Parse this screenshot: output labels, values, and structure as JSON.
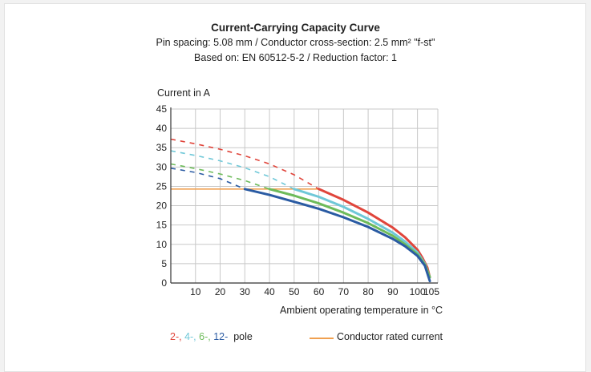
{
  "title": "Current-Carrying Capacity Curve",
  "subtitle_1": "Pin spacing: 5.08 mm / Conductor cross-section: 2.5 mm² \"f-st\"",
  "subtitle_2": "Based on: EN 60512-5-2 / Reduction factor: 1",
  "legend": {
    "poles": [
      {
        "text": "2-, ",
        "color": "#e0453b"
      },
      {
        "text": "4-, ",
        "color": "#6fc8d8"
      },
      {
        "text": "6-, ",
        "color": "#6dbb5a"
      },
      {
        "text": "12-",
        "color": "#2a5ba3"
      }
    ],
    "pole_suffix": "  pole",
    "rated_label": "Conductor rated current"
  },
  "chart_data": {
    "type": "line",
    "ylabel": "Current in A",
    "xlabel": "Ambient operating temperature in °C",
    "xlim": [
      0,
      105
    ],
    "ylim": [
      0,
      45
    ],
    "x_ticks": [
      10,
      20,
      30,
      40,
      50,
      60,
      70,
      80,
      90,
      100,
      105
    ],
    "y_ticks": [
      45,
      40,
      35,
      30,
      25,
      20,
      15,
      10,
      5,
      0
    ],
    "grid": true,
    "series": [
      {
        "name": "2-",
        "color": "#e0453b",
        "dashed": [
          [
            0,
            37.2
          ],
          [
            10,
            36.0
          ],
          [
            20,
            34.6
          ],
          [
            30,
            32.9
          ],
          [
            40,
            30.8
          ],
          [
            50,
            28.0
          ],
          [
            60,
            24.3
          ]
        ],
        "solid": [
          [
            60,
            24.3
          ],
          [
            70,
            21.5
          ],
          [
            80,
            18.2
          ],
          [
            90,
            14.3
          ],
          [
            95,
            11.8
          ],
          [
            100,
            8.6
          ],
          [
            102,
            6.5
          ],
          [
            104,
            4.0
          ],
          [
            105,
            1.5
          ]
        ]
      },
      {
        "name": "4-",
        "color": "#6fc8d8",
        "dashed": [
          [
            0,
            34.2
          ],
          [
            10,
            33.0
          ],
          [
            20,
            31.6
          ],
          [
            30,
            29.8
          ],
          [
            40,
            27.5
          ],
          [
            50,
            24.3
          ]
        ],
        "solid": [
          [
            50,
            24.3
          ],
          [
            60,
            22.3
          ],
          [
            70,
            19.7
          ],
          [
            80,
            16.6
          ],
          [
            90,
            13.0
          ],
          [
            95,
            10.7
          ],
          [
            100,
            7.9
          ],
          [
            103,
            5.0
          ],
          [
            105,
            1.5
          ]
        ]
      },
      {
        "name": "6-",
        "color": "#6dbb5a",
        "dashed": [
          [
            0,
            30.8
          ],
          [
            10,
            29.6
          ],
          [
            20,
            28.2
          ],
          [
            30,
            26.5
          ],
          [
            40,
            24.3
          ]
        ],
        "solid": [
          [
            40,
            24.3
          ],
          [
            50,
            22.6
          ],
          [
            60,
            20.6
          ],
          [
            70,
            18.2
          ],
          [
            80,
            15.5
          ],
          [
            90,
            12.2
          ],
          [
            95,
            10.0
          ],
          [
            100,
            7.4
          ],
          [
            103,
            4.8
          ],
          [
            105,
            1.5
          ]
        ]
      },
      {
        "name": "12-",
        "color": "#2a5ba3",
        "dashed": [
          [
            0,
            29.7
          ],
          [
            10,
            28.6
          ],
          [
            20,
            27.0
          ],
          [
            30,
            24.3
          ]
        ],
        "solid": [
          [
            30,
            24.3
          ],
          [
            40,
            22.8
          ],
          [
            50,
            21.0
          ],
          [
            60,
            19.2
          ],
          [
            70,
            17.0
          ],
          [
            80,
            14.5
          ],
          [
            90,
            11.4
          ],
          [
            95,
            9.5
          ],
          [
            100,
            7.0
          ],
          [
            103,
            4.5
          ],
          [
            105,
            0.5
          ]
        ]
      }
    ],
    "rated_current": {
      "name": "Conductor rated current",
      "value": 24.3,
      "x_end": 60,
      "color": "#f0a050"
    }
  }
}
